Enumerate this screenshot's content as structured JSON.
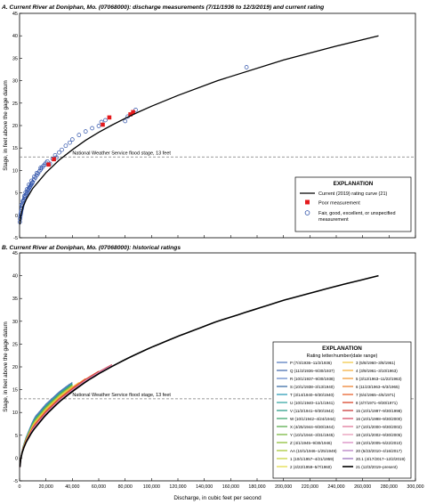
{
  "figure": {
    "ylabel": "Stage, in feet above the gage datum",
    "xlabel": "Discharge, in cubic feet per second"
  },
  "chart_data": [
    {
      "type": "scatter",
      "title": "A. Current River at Doniphan, Mo. (07068000): discharge measurements (7/11/1936 to 12/3/2019) and current rating",
      "xlim": [
        0,
        300000
      ],
      "ylim": [
        -5,
        45
      ],
      "xticks": [],
      "yticks": [
        -5,
        0,
        5,
        10,
        15,
        20,
        25,
        30,
        35,
        40,
        45
      ],
      "grid": false,
      "flood_stage": {
        "value": 13,
        "label": "National Weather Service flood stage, 13 feet"
      },
      "legend": {
        "title": "EXPLANATION",
        "placement": "lower-right",
        "items": [
          {
            "label": "Current (2019) rating curve (21)",
            "kind": "line",
            "color": "#000000"
          },
          {
            "label": "Poor measurement",
            "kind": "square",
            "color": "#e41a1c"
          },
          {
            "label": "Fair, good, excellent, or unspecified measurement",
            "kind": "circle",
            "color": "#2b4fa8"
          }
        ]
      },
      "rating_curve": {
        "name": "Current (2019) rating curve (21)",
        "x": [
          300,
          1000,
          2500,
          5000,
          10000,
          20000,
          30000,
          40000,
          50000,
          60000,
          70000,
          80000,
          90000,
          100000,
          120000,
          150000,
          200000,
          240000,
          272000
        ],
        "y": [
          -2,
          0,
          1.8,
          3.5,
          6,
          9.5,
          12.3,
          14.6,
          16.7,
          18.5,
          20.1,
          21.6,
          23,
          24.3,
          26.7,
          30,
          34.6,
          37.7,
          40
        ]
      },
      "poor_measurements": {
        "x": [
          22000,
          26000,
          63000,
          68000,
          84000,
          86000
        ],
        "y": [
          11.3,
          12.5,
          20.2,
          21.8,
          22.5,
          23.0
        ]
      },
      "fair_measurements": {
        "x": [
          200,
          400,
          600,
          800,
          1000,
          1200,
          1500,
          1800,
          2000,
          2300,
          2600,
          3000,
          3300,
          3600,
          4000,
          4500,
          5000,
          5500,
          6000,
          6500,
          7000,
          7500,
          8000,
          8500,
          9000,
          9500,
          10000,
          11000,
          12000,
          13000,
          14000,
          15000,
          16000,
          17000,
          18000,
          19000,
          20000,
          21000,
          23000,
          25000,
          27000,
          28000,
          30000,
          32000,
          35000,
          38000,
          40000,
          45000,
          50000,
          55000,
          60000,
          62000,
          65000,
          80000,
          82000,
          88000,
          172000,
          1500,
          2500,
          3500,
          4500,
          5500,
          7000,
          9000,
          11000,
          13000,
          16000
        ],
        "y": [
          -1.5,
          -0.8,
          -0.3,
          0.2,
          0.5,
          0.9,
          1.3,
          1.6,
          2.0,
          2.4,
          2.7,
          3.1,
          3.4,
          3.7,
          4.0,
          4.4,
          4.7,
          5.0,
          5.3,
          5.6,
          5.9,
          6.2,
          6.4,
          6.7,
          6.9,
          7.2,
          7.4,
          8.0,
          8.4,
          8.9,
          9.3,
          9.8,
          10.2,
          10.6,
          11.0,
          11.3,
          11.7,
          12.0,
          11.5,
          12.6,
          13.4,
          12.9,
          14.0,
          14.6,
          15.5,
          16.2,
          16.9,
          17.9,
          18.7,
          19.4,
          19.9,
          20.8,
          21.2,
          21.0,
          22.0,
          23.5,
          33.0,
          2.3,
          3.2,
          4.3,
          5.1,
          5.8,
          6.8,
          7.7,
          8.6,
          9.4,
          10.6
        ]
      }
    },
    {
      "type": "line",
      "title": "B. Current River at Doniphan, Mo. (07068000): historical ratings",
      "xlim": [
        0,
        300000
      ],
      "ylim": [
        -5,
        45
      ],
      "xticks": [
        "0",
        "20,000",
        "40,000",
        "60,000",
        "80,000",
        "100,000",
        "120,000",
        "140,000",
        "160,000",
        "180,000",
        "200,000",
        "220,000",
        "240,000",
        "260,000",
        "280,000",
        "300,000"
      ],
      "yticks": [
        -5,
        0,
        5,
        10,
        15,
        20,
        25,
        30,
        35,
        40,
        45
      ],
      "grid": false,
      "flood_stage": {
        "value": 13,
        "label": "National Weather Service flood stage, 13 feet"
      },
      "legend_title": "EXPLANATION",
      "legend_subtitle": "Rating letter/number(date range)",
      "legend_placement": "right",
      "series": [
        {
          "name": "P (7/4/1936–11/2/1936)",
          "color": "#5b7fbf",
          "max_x": 38000
        },
        {
          "name": "Q (11/3/1936–9/30/1937)",
          "color": "#4a6fb0",
          "max_x": 40000
        },
        {
          "name": "R (10/1/1937–9/30/1938)",
          "color": "#6a8ccc",
          "max_x": 38000
        },
        {
          "name": "S (10/1/1938–3/13/1940)",
          "color": "#3d6ea8",
          "max_x": 38000
        },
        {
          "name": "T (3/14/1940–9/30/1940)",
          "color": "#2f9fb8",
          "max_x": 40000
        },
        {
          "name": "U (10/1/1940–11/1/1941)",
          "color": "#3aa9a6",
          "max_x": 40000
        },
        {
          "name": "V (11/2/1941–9/30/1942)",
          "color": "#2e9d8a",
          "max_x": 40000
        },
        {
          "name": "W (10/1/1942–4/24/1944)",
          "color": "#3da66e",
          "max_x": 40000
        },
        {
          "name": "X (4/25/1944–9/30/1944)",
          "color": "#5aad4d",
          "max_x": 40000
        },
        {
          "name": "Y (10/1/1944–3/31/1945)",
          "color": "#7bb842",
          "max_x": 40000
        },
        {
          "name": "Z (4/1/1945–9/30/1946)",
          "color": "#8fbf3a",
          "max_x": 40000
        },
        {
          "name": "AA (10/1/1946–1/25/1949)",
          "color": "#a9c93a",
          "max_x": 40000
        },
        {
          "name": "1 (10/1/1957–4/21/1959)",
          "color": "#c7d43f",
          "max_x": 40000
        },
        {
          "name": "2 (4/22/1959–5/7/1960)",
          "color": "#e3dc4c",
          "max_x": 40000
        },
        {
          "name": "3 (5/8/1960–3/8/1961)",
          "color": "#f2c84b",
          "max_x": 45000
        },
        {
          "name": "4 (3/9/1961–3/10/1963)",
          "color": "#f4b041",
          "max_x": 45000
        },
        {
          "name": "5 (3/12/1963–11/22/1963)",
          "color": "#f29b3a",
          "max_x": 50000
        },
        {
          "name": "6 (11/23/1963–6/3/1965)",
          "color": "#ef8434",
          "max_x": 50000
        },
        {
          "name": "7 (6/4/1965–4/6/1971)",
          "color": "#e8632f",
          "max_x": 60000
        },
        {
          "name": "8 (4/7/1971–9/30/1971)",
          "color": "#d9452b",
          "max_x": 60000
        },
        {
          "name": "15 (10/1/1997–9/30/1998)",
          "color": "#c93a3a",
          "max_x": 70000
        },
        {
          "name": "16 (10/1/1998–9/30/2000)",
          "color": "#d6506a",
          "max_x": 70000
        },
        {
          "name": "17 (10/1/2000–9/30/2002)",
          "color": "#e07a9c",
          "max_x": 70000
        },
        {
          "name": "18 (10/1/2002–9/30/2005)",
          "color": "#e89ab8",
          "max_x": 70000
        },
        {
          "name": "19 (10/1/2005–5/22/2010)",
          "color": "#d98cc4",
          "max_x": 70000
        },
        {
          "name": "20 (5/23/2010–4/16/2017)",
          "color": "#b77fc3",
          "max_x": 70000
        },
        {
          "name": "20.1 (4/17/2017–12/2/2019)",
          "color": "#9a73bd",
          "max_x": 70000
        },
        {
          "name": "21 (12/3/2019–present)",
          "color": "#000000",
          "max_x": 272000
        }
      ]
    }
  ]
}
